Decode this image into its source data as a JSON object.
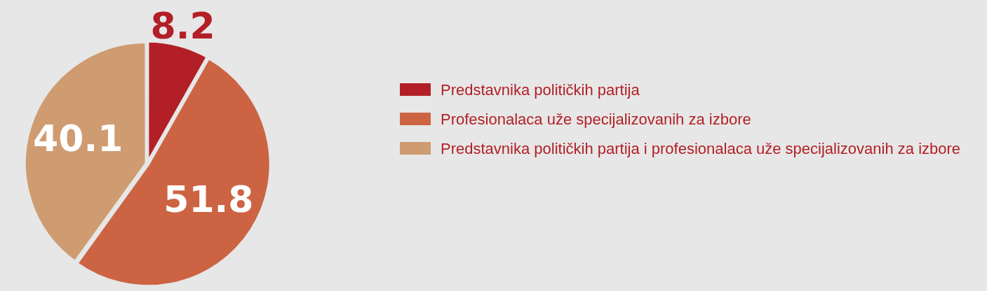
{
  "chart_data": {
    "type": "pie",
    "categories": [
      "Predstavnika političkih partija",
      "Profesionalaca uže specijalizovanih za izbore",
      "Predstavnika političkih partija i profesionalaca uže specijalizovanih za izbore"
    ],
    "values": [
      8.2,
      51.8,
      40.1
    ],
    "colors": [
      "#b31f26",
      "#cc6444",
      "#cf9b70"
    ],
    "data_labels": true,
    "legend": "right"
  }
}
